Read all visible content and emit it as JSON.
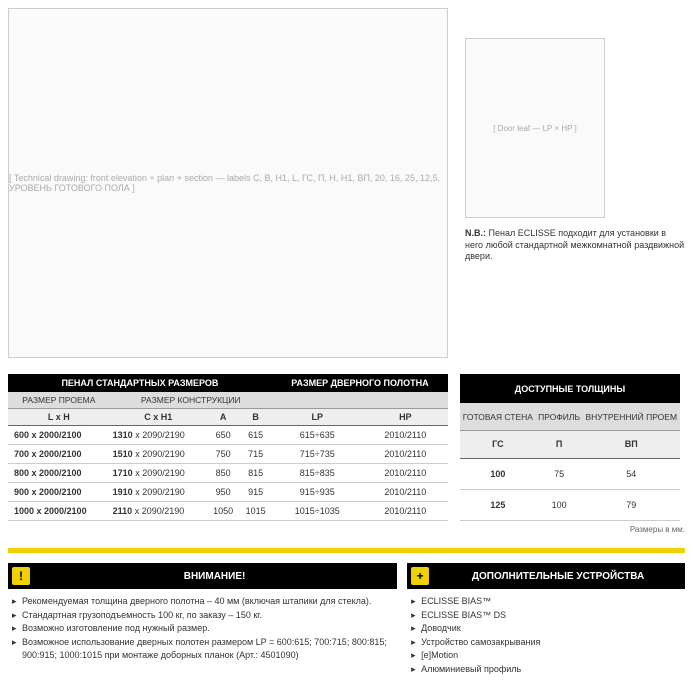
{
  "diagram": {
    "placeholder1": "[ Technical drawing: front elevation + plan + section — labels C, B, H1, L, ГС, П, H, H1, ВП, 20, 16, 25, 12,5, УРОВЕНЬ ГОТОВОГО ПОЛА ]",
    "placeholder2": "[ Door leaf — LP × HP ]"
  },
  "nb": {
    "prefix": "N.B.:",
    "text": " Пенал ECLISSE подходит для установки в него любой стандартной межкомнатной раздвижной двери."
  },
  "mainTable": {
    "header1": "ПЕНАЛ СТАНДАРТНЫХ РАЗМЕРОВ",
    "header2": "РАЗМЕР ДВЕРНОГО ПОЛОТНА",
    "sub1": "РАЗМЕР ПРОЕМА",
    "sub2": "РАЗМЕР КОНСТРУКЦИИ",
    "colLH": "L x H",
    "colCH1": "C x H1",
    "colA": "A",
    "colB": "B",
    "colLP": "LP",
    "colHP": "HP",
    "rows": [
      {
        "lh": "600 x 2000/2100",
        "c": "1310",
        "h1": " x 2090/2190",
        "a": "650",
        "b": "615",
        "lp": "615÷635",
        "hp": "2010/2110"
      },
      {
        "lh": "700 x 2000/2100",
        "c": "1510",
        "h1": " x 2090/2190",
        "a": "750",
        "b": "715",
        "lp": "715÷735",
        "hp": "2010/2110"
      },
      {
        "lh": "800 x 2000/2100",
        "c": "1710",
        "h1": " x 2090/2190",
        "a": "850",
        "b": "815",
        "lp": "815÷835",
        "hp": "2010/2110"
      },
      {
        "lh": "900 x 2000/2100",
        "c": "1910",
        "h1": " x 2090/2190",
        "a": "950",
        "b": "915",
        "lp": "915÷935",
        "hp": "2010/2110"
      },
      {
        "lh": "1000 x 2000/2100",
        "c": "2110",
        "h1": " x 2090/2190",
        "a": "1050",
        "b": "1015",
        "lp": "1015÷1035",
        "hp": "2010/2110"
      }
    ]
  },
  "thickTable": {
    "header": "ДОСТУПНЫЕ ТОЛЩИНЫ",
    "sub1": "ГОТОВАЯ СТЕНА",
    "sub2": "ПРОФИЛЬ",
    "sub3": "ВНУТРЕННИЙ ПРОЕМ",
    "code1": "ГС",
    "code2": "П",
    "code3": "ВП",
    "rows": [
      {
        "gs": "100",
        "p": "75",
        "vp": "54"
      },
      {
        "gs": "125",
        "p": "100",
        "vp": "79"
      }
    ]
  },
  "dimNote": "Размеры в мм.",
  "warning": {
    "title": "ВНИМАНИЕ!",
    "items": [
      "Рекомендуемая толщина дверного полотна – 40 мм (включая штапики для стекла).",
      "Стандартная грузоподъемность 100 кг, по заказу – 150 кг.",
      "Возможно изготовление под нужный размер.",
      "Возможное использование дверных полотен размером LP = 600:615; 700:715; 800:815; 900:915; 1000:1015 при монтаже доборных планок (Арт.: 4501090)"
    ]
  },
  "extras": {
    "title": "ДОПОЛНИТЕЛЬНЫЕ УСТРОЙСТВА",
    "items": [
      "ECLISSE BIAS™",
      "ECLISSE BIAS™ DS",
      "Доводчик",
      "Устройство самозакрывания",
      "[e]Motion",
      "Алюминиевый профиль"
    ]
  }
}
